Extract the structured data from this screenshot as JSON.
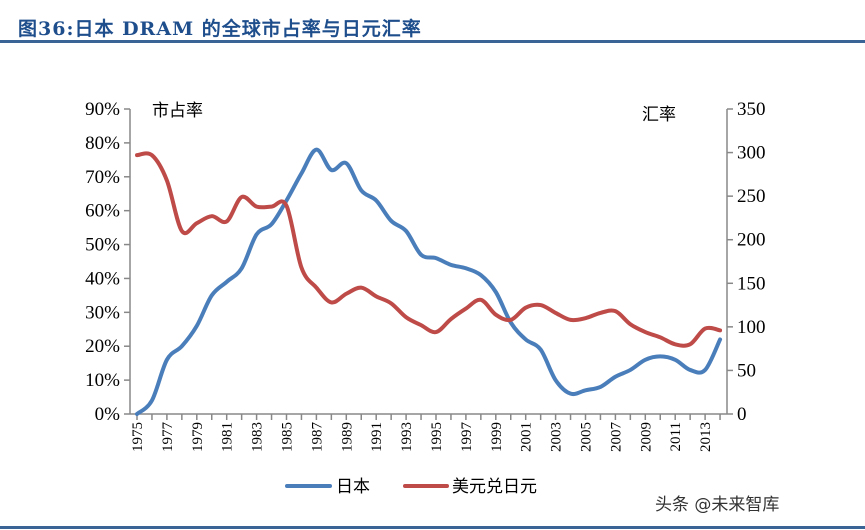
{
  "header": {
    "title": "图36:日本 DRAM 的全球市占率与日元汇率"
  },
  "watermark": "头条 @未来智库",
  "chart_data": {
    "type": "line",
    "title": "",
    "x": [
      1975,
      1976,
      1977,
      1978,
      1979,
      1980,
      1981,
      1982,
      1983,
      1984,
      1985,
      1986,
      1987,
      1988,
      1989,
      1990,
      1991,
      1992,
      1993,
      1994,
      1995,
      1996,
      1997,
      1998,
      1999,
      2000,
      2001,
      2002,
      2003,
      2004,
      2005,
      2006,
      2007,
      2008,
      2009,
      2010,
      2011,
      2012,
      2013,
      2014
    ],
    "x_tick_labels": [
      "1975",
      "1977",
      "1979",
      "1981",
      "1983",
      "1985",
      "1987",
      "1989",
      "1991",
      "1993",
      "1995",
      "1997",
      "1999",
      "2001",
      "2003",
      "2005",
      "2007",
      "2009",
      "2011",
      "2013"
    ],
    "ylabel_left": "市占率",
    "ylabel_right": "汇率",
    "ylim_left": [
      0,
      90
    ],
    "ylim_right": [
      0,
      350
    ],
    "left_tick_labels": [
      "0%",
      "10%",
      "20%",
      "30%",
      "40%",
      "50%",
      "60%",
      "70%",
      "80%",
      "90%"
    ],
    "right_tick_labels": [
      "0",
      "50",
      "100",
      "150",
      "200",
      "250",
      "300",
      "350"
    ],
    "grid": false,
    "legend_position": "bottom",
    "series": [
      {
        "name": "日本",
        "axis": "left",
        "color": "#4a7ebb",
        "values": [
          0,
          4,
          16,
          20,
          26,
          35,
          39,
          43,
          53,
          56,
          63,
          71,
          78,
          72,
          74,
          66,
          63,
          57,
          54,
          47,
          46,
          44,
          43,
          41,
          36,
          27,
          22,
          19,
          10,
          6,
          7,
          8,
          11,
          13,
          16,
          17,
          16,
          13,
          13,
          22
        ]
      },
      {
        "name": "美元兑日元",
        "axis": "right",
        "color": "#be4b48",
        "values": [
          297,
          297,
          268,
          210,
          219,
          227,
          221,
          249,
          238,
          238,
          239,
          168,
          145,
          128,
          138,
          145,
          135,
          127,
          111,
          102,
          94,
          109,
          121,
          131,
          114,
          108,
          122,
          125,
          116,
          108,
          110,
          116,
          118,
          103,
          94,
          88,
          80,
          80,
          98,
          96
        ]
      }
    ]
  }
}
